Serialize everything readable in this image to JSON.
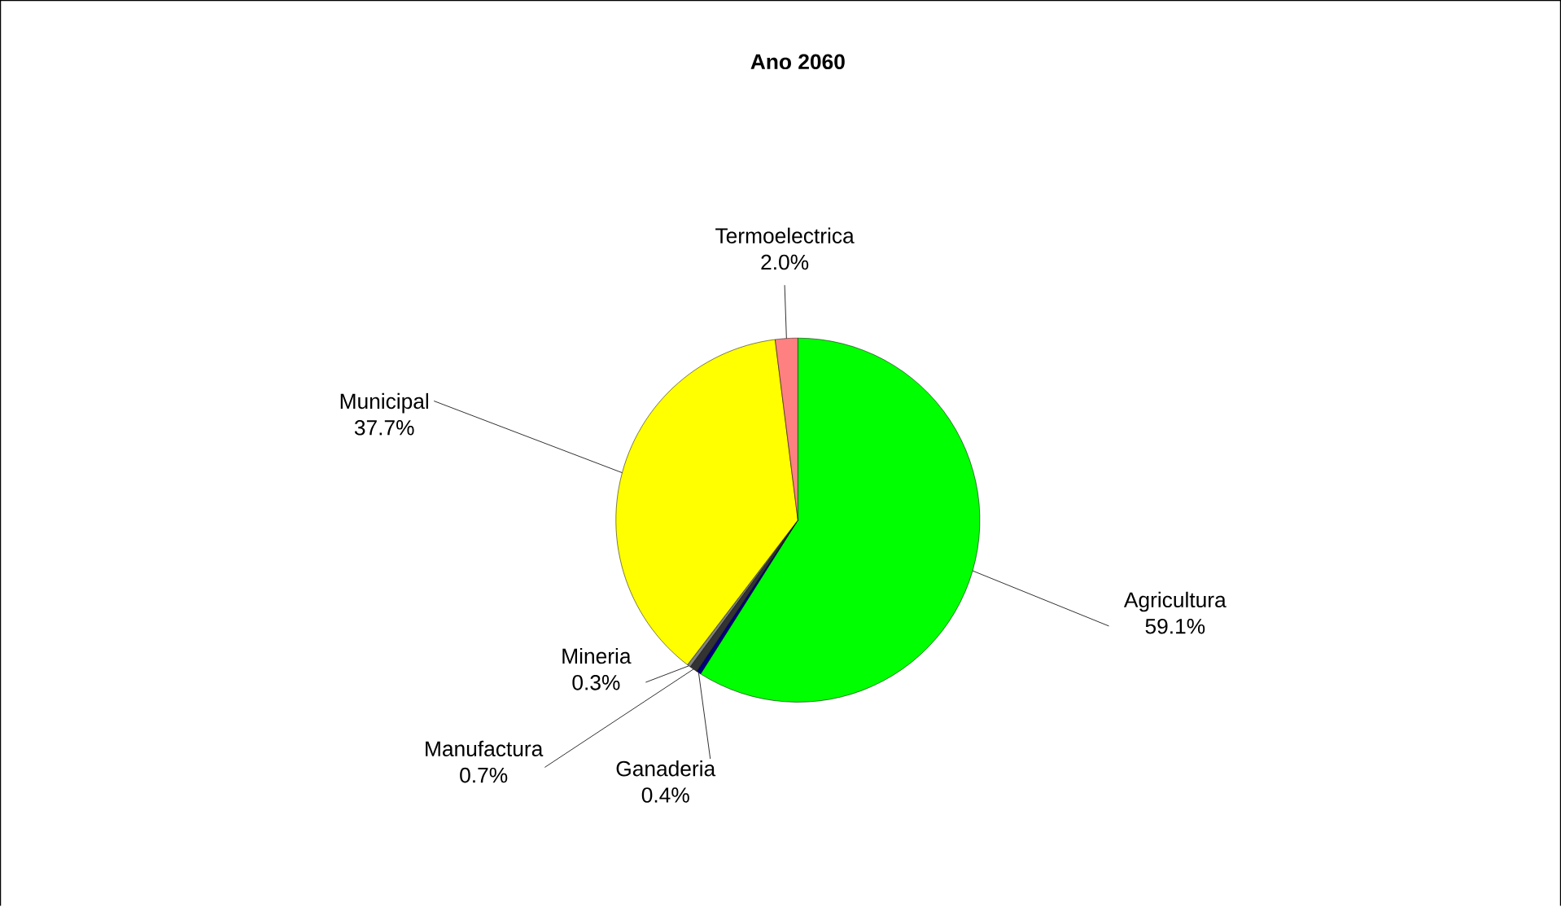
{
  "chart_data": {
    "type": "pie",
    "title": "Ano 2060",
    "categories": [
      "Agricultura",
      "Ganaderia",
      "Manufactura",
      "Mineria",
      "Municipal",
      "Termoelectrica"
    ],
    "values": [
      59.1,
      0.4,
      0.7,
      0.3,
      37.7,
      2.0
    ],
    "colors": [
      "#00ff00",
      "#000080",
      "#333333",
      "#808080",
      "#ffff00",
      "#ff8080"
    ],
    "value_labels": [
      "59.1%",
      "0.4%",
      "0.7%",
      "0.3%",
      "37.7%",
      "2.0%"
    ]
  }
}
